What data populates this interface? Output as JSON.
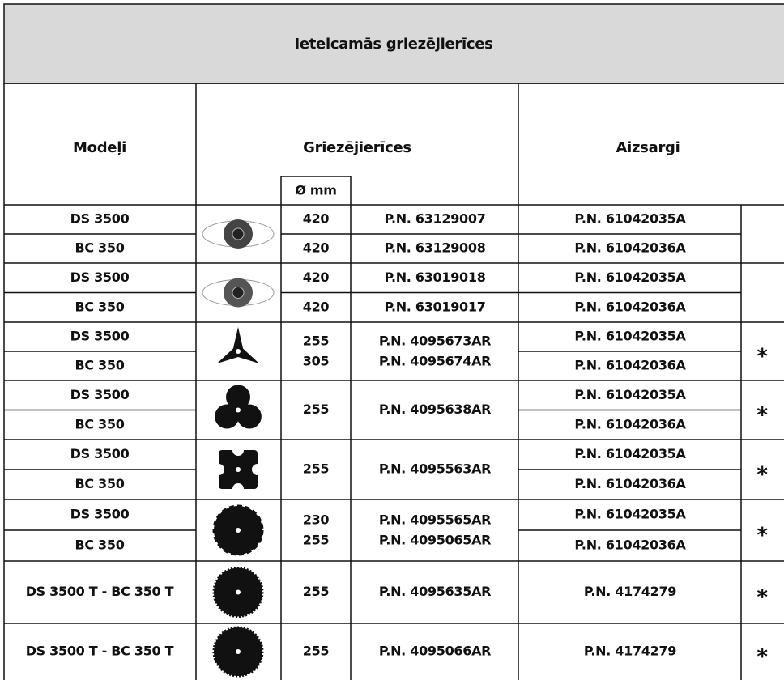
{
  "title": "Ieteicamās griezējierīces",
  "header": {
    "models": "Modeļi",
    "cutting_tools": "Griezējierīces",
    "diameter": "Ø mm",
    "guards": "Aizsargi"
  },
  "groups": [
    {
      "models": [
        "DS 3500",
        "BC 350"
      ],
      "diameters": [
        420,
        420
      ],
      "part_numbers": [
        "P.N. 63129007",
        "P.N. 63129008"
      ],
      "guards": [
        "P.N. 61042035A",
        "P.N. 61042036A"
      ]
    },
    {
      "models": [
        "DS 3500",
        "BC 350"
      ],
      "diameters": [
        420,
        420
      ],
      "part_numbers": [
        "P.N. 63019018",
        "P.N. 63019017"
      ],
      "guards": [
        "P.N. 61042035A",
        "P.N. 61042036A"
      ]
    },
    {
      "models": [
        "DS 3500",
        "BC 350"
      ],
      "diameters": [
        255,
        305
      ],
      "part_numbers": [
        "P.N. 4095673AR",
        "P.N. 4095674AR"
      ],
      "guards": [
        "P.N. 61042035A",
        "P.N. 61042036A"
      ],
      "note": "*"
    },
    {
      "models": [
        "DS 3500",
        "BC 350"
      ],
      "diameters": [
        255
      ],
      "part_numbers": [
        "P.N. 4095638AR"
      ],
      "guards": [
        "P.N. 61042035A",
        "P.N. 61042036A"
      ],
      "note": "*"
    },
    {
      "models": [
        "DS 3500",
        "BC 350"
      ],
      "diameters": [
        255
      ],
      "part_numbers": [
        "P.N. 4095563AR"
      ],
      "guards": [
        "P.N. 61042035A",
        "P.N. 61042036A"
      ],
      "note": "*"
    },
    {
      "models": [
        "DS 3500",
        "BC 350"
      ],
      "diameters": [
        230,
        255
      ],
      "part_numbers": [
        "P.N. 4095565AR",
        "P.N. 4095065AR"
      ],
      "guards": [
        "P.N. 61042035A",
        "P.N. 61042036A"
      ],
      "note": "*"
    },
    {
      "models": [
        "DS 3500 T - BC 350 T"
      ],
      "diameters": [
        255
      ],
      "part_numbers": [
        "P.N. 4095635AR"
      ],
      "guards": [
        "P.N. 4174279"
      ],
      "note": "*"
    },
    {
      "models": [
        "DS 3500 T - BC 350 T"
      ],
      "diameters": [
        255
      ],
      "part_numbers": [
        "P.N. 4095066AR"
      ],
      "guards": [
        "P.N. 4174279"
      ],
      "note": "*"
    }
  ]
}
